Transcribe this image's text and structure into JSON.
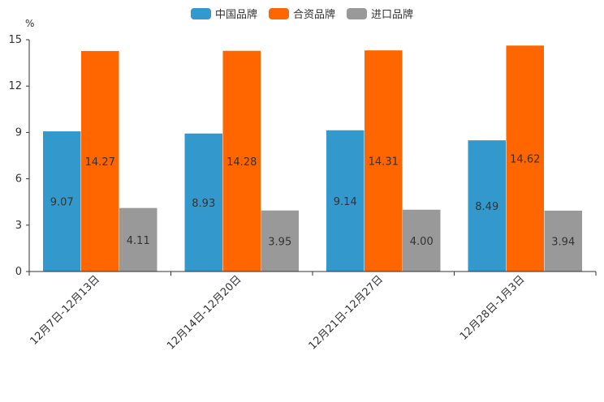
{
  "chart_data": {
    "type": "bar",
    "unit_label": "%",
    "categories": [
      "12月7日-12月13日",
      "12月14日-12月20日",
      "12月21日-12月27日",
      "12月28日-1月3日"
    ],
    "series": [
      {
        "name": "中国品牌",
        "color": "#3399cc",
        "values": [
          9.07,
          8.93,
          9.14,
          8.49
        ],
        "labels": [
          "9.07",
          "8.93",
          "9.14",
          "8.49"
        ]
      },
      {
        "name": "合资品牌",
        "color": "#ff6600",
        "values": [
          14.27,
          14.28,
          14.31,
          14.62
        ],
        "labels": [
          "14.27",
          "14.28",
          "14.31",
          "14.62"
        ]
      },
      {
        "name": "进口品牌",
        "color": "#999999",
        "values": [
          4.11,
          3.95,
          4.0,
          3.94
        ],
        "labels": [
          "4.11",
          "3.95",
          "4.00",
          "3.94"
        ]
      }
    ],
    "ylim": [
      0,
      15
    ],
    "yticks": [
      0,
      3,
      6,
      9,
      12,
      15
    ],
    "legend_position": "top-center"
  }
}
